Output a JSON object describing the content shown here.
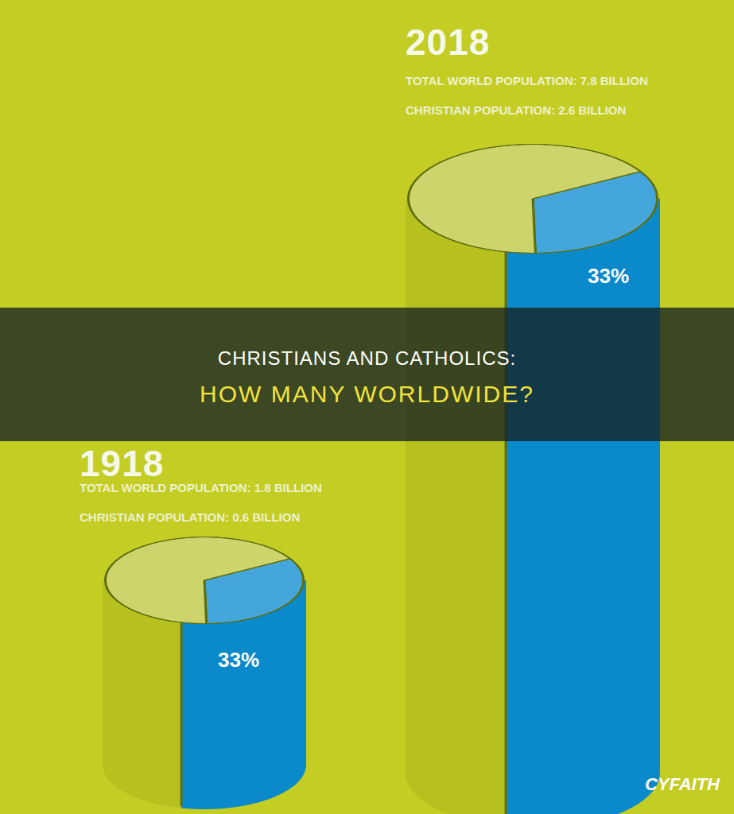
{
  "banner": {
    "title": "CHRISTIANS AND CATHOLICS:",
    "subtitle": "HOW MANY WORLDWIDE?"
  },
  "logo": "CYFAITH",
  "chart_data": [
    {
      "type": "pie",
      "title": "1918",
      "annotations": [
        "TOTAL WORLD POPULATION: 1.8 BILLION",
        "CHRISTIAN POPULATION: 0.6 BILLION"
      ],
      "categories": [
        null,
        null
      ],
      "values": [
        33,
        67
      ],
      "value_labels": [
        "33%",
        null
      ],
      "colors": [
        "#45a6dc",
        "#cdd46c"
      ],
      "data_labels": true
    },
    {
      "type": "pie",
      "title": "2018",
      "annotations": [
        "TOTAL WORLD POPULATION: 7.8 BILLION",
        "CHRISTIAN POPULATION: 2.6 BILLION"
      ],
      "categories": [
        null,
        null
      ],
      "values": [
        33,
        67
      ],
      "value_labels": [
        "33%",
        null
      ],
      "colors": [
        "#45a6dc",
        "#cdd46c"
      ],
      "data_labels": true
    }
  ]
}
